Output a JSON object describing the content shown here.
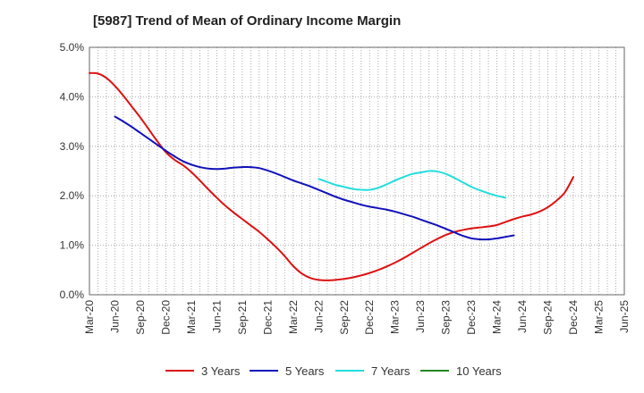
{
  "chart_data": {
    "type": "line",
    "title": "[5987]  Trend of Mean of Ordinary Income Margin",
    "xlabel": "",
    "ylabel": "",
    "grid": true,
    "legend_position": "bottom",
    "x_ticks": [
      "Mar-20",
      "Jun-20",
      "Sep-20",
      "Dec-20",
      "Mar-21",
      "Jun-21",
      "Sep-21",
      "Dec-21",
      "Mar-22",
      "Jun-22",
      "Sep-22",
      "Dec-22",
      "Mar-23",
      "Jun-23",
      "Sep-23",
      "Dec-23",
      "Mar-24",
      "Jun-24",
      "Sep-24",
      "Dec-24",
      "Mar-25",
      "Jun-25"
    ],
    "y_ticks": [
      "0.0%",
      "1.0%",
      "2.0%",
      "3.0%",
      "4.0%",
      "5.0%"
    ],
    "ylim": [
      0,
      5
    ],
    "series": [
      {
        "name": "3 Years",
        "color": "#dd1111",
        "points": [
          [
            "Mar-20",
            4.48
          ],
          [
            "Apr-20",
            4.47
          ],
          [
            "May-20",
            4.38
          ],
          [
            "Jun-20",
            4.22
          ],
          [
            "Jul-20",
            4.02
          ],
          [
            "Aug-20",
            3.8
          ],
          [
            "Sep-20",
            3.58
          ],
          [
            "Oct-20",
            3.34
          ],
          [
            "Nov-20",
            3.1
          ],
          [
            "Dec-20",
            2.88
          ],
          [
            "Jan-21",
            2.73
          ],
          [
            "Feb-21",
            2.62
          ],
          [
            "Mar-21",
            2.48
          ],
          [
            "Apr-21",
            2.31
          ],
          [
            "May-21",
            2.13
          ],
          [
            "Jun-21",
            1.96
          ],
          [
            "Jul-21",
            1.8
          ],
          [
            "Aug-21",
            1.66
          ],
          [
            "Sep-21",
            1.53
          ],
          [
            "Oct-21",
            1.4
          ],
          [
            "Nov-21",
            1.27
          ],
          [
            "Dec-21",
            1.12
          ],
          [
            "Jan-22",
            0.96
          ],
          [
            "Feb-22",
            0.78
          ],
          [
            "Mar-22",
            0.58
          ],
          [
            "Apr-22",
            0.43
          ],
          [
            "May-22",
            0.34
          ],
          [
            "Jun-22",
            0.3
          ],
          [
            "Jul-22",
            0.29
          ],
          [
            "Aug-22",
            0.3
          ],
          [
            "Sep-22",
            0.32
          ],
          [
            "Oct-22",
            0.35
          ],
          [
            "Nov-22",
            0.39
          ],
          [
            "Dec-22",
            0.44
          ],
          [
            "Jan-23",
            0.5
          ],
          [
            "Feb-23",
            0.57
          ],
          [
            "Mar-23",
            0.65
          ],
          [
            "Apr-23",
            0.74
          ],
          [
            "May-23",
            0.84
          ],
          [
            "Jun-23",
            0.94
          ],
          [
            "Jul-23",
            1.04
          ],
          [
            "Aug-23",
            1.13
          ],
          [
            "Sep-23",
            1.21
          ],
          [
            "Oct-23",
            1.27
          ],
          [
            "Nov-23",
            1.31
          ],
          [
            "Dec-23",
            1.34
          ],
          [
            "Jan-24",
            1.36
          ],
          [
            "Feb-24",
            1.38
          ],
          [
            "Mar-24",
            1.41
          ],
          [
            "Apr-24",
            1.47
          ],
          [
            "May-24",
            1.53
          ],
          [
            "Jun-24",
            1.58
          ],
          [
            "Jul-24",
            1.62
          ],
          [
            "Aug-24",
            1.68
          ],
          [
            "Sep-24",
            1.77
          ],
          [
            "Oct-24",
            1.9
          ],
          [
            "Nov-24",
            2.07
          ],
          [
            "Dec-24",
            2.38
          ]
        ]
      },
      {
        "name": "5 Years",
        "color": "#1111bb",
        "points": [
          [
            "Jun-20",
            3.6
          ],
          [
            "Jul-20",
            3.5
          ],
          [
            "Aug-20",
            3.39
          ],
          [
            "Sep-20",
            3.27
          ],
          [
            "Oct-20",
            3.15
          ],
          [
            "Nov-20",
            3.03
          ],
          [
            "Dec-20",
            2.91
          ],
          [
            "Jan-21",
            2.8
          ],
          [
            "Feb-21",
            2.7
          ],
          [
            "Mar-21",
            2.63
          ],
          [
            "Apr-21",
            2.58
          ],
          [
            "May-21",
            2.55
          ],
          [
            "Jun-21",
            2.54
          ],
          [
            "Jul-21",
            2.55
          ],
          [
            "Aug-21",
            2.57
          ],
          [
            "Sep-21",
            2.58
          ],
          [
            "Oct-21",
            2.58
          ],
          [
            "Nov-21",
            2.56
          ],
          [
            "Dec-21",
            2.51
          ],
          [
            "Jan-22",
            2.45
          ],
          [
            "Feb-22",
            2.38
          ],
          [
            "Mar-22",
            2.31
          ],
          [
            "Apr-22",
            2.25
          ],
          [
            "May-22",
            2.19
          ],
          [
            "Jun-22",
            2.12
          ],
          [
            "Jul-22",
            2.05
          ],
          [
            "Aug-22",
            1.98
          ],
          [
            "Sep-22",
            1.92
          ],
          [
            "Oct-22",
            1.87
          ],
          [
            "Nov-22",
            1.82
          ],
          [
            "Dec-22",
            1.78
          ],
          [
            "Jan-23",
            1.75
          ],
          [
            "Feb-23",
            1.72
          ],
          [
            "Mar-23",
            1.68
          ],
          [
            "Apr-23",
            1.63
          ],
          [
            "May-23",
            1.58
          ],
          [
            "Jun-23",
            1.52
          ],
          [
            "Jul-23",
            1.46
          ],
          [
            "Aug-23",
            1.4
          ],
          [
            "Sep-23",
            1.33
          ],
          [
            "Oct-23",
            1.26
          ],
          [
            "Nov-23",
            1.19
          ],
          [
            "Dec-23",
            1.14
          ],
          [
            "Jan-24",
            1.12
          ],
          [
            "Feb-24",
            1.12
          ],
          [
            "Mar-24",
            1.14
          ],
          [
            "Apr-24",
            1.17
          ],
          [
            "May-24",
            1.2
          ]
        ]
      },
      {
        "name": "7 Years",
        "color": "#22dddd",
        "points": [
          [
            "Jun-22",
            2.34
          ],
          [
            "Jul-22",
            2.28
          ],
          [
            "Aug-22",
            2.22
          ],
          [
            "Sep-22",
            2.18
          ],
          [
            "Oct-22",
            2.14
          ],
          [
            "Nov-22",
            2.12
          ],
          [
            "Dec-22",
            2.12
          ],
          [
            "Jan-23",
            2.16
          ],
          [
            "Feb-23",
            2.23
          ],
          [
            "Mar-23",
            2.31
          ],
          [
            "Apr-23",
            2.38
          ],
          [
            "May-23",
            2.44
          ],
          [
            "Jun-23",
            2.47
          ],
          [
            "Jul-23",
            2.5
          ],
          [
            "Aug-23",
            2.49
          ],
          [
            "Sep-23",
            2.44
          ],
          [
            "Oct-23",
            2.36
          ],
          [
            "Nov-23",
            2.27
          ],
          [
            "Dec-23",
            2.18
          ],
          [
            "Jan-24",
            2.11
          ],
          [
            "Feb-24",
            2.05
          ],
          [
            "Mar-24",
            2.0
          ],
          [
            "Apr-24",
            1.96
          ]
        ]
      },
      {
        "name": "10 Years",
        "color": "#228822",
        "points": []
      }
    ]
  }
}
